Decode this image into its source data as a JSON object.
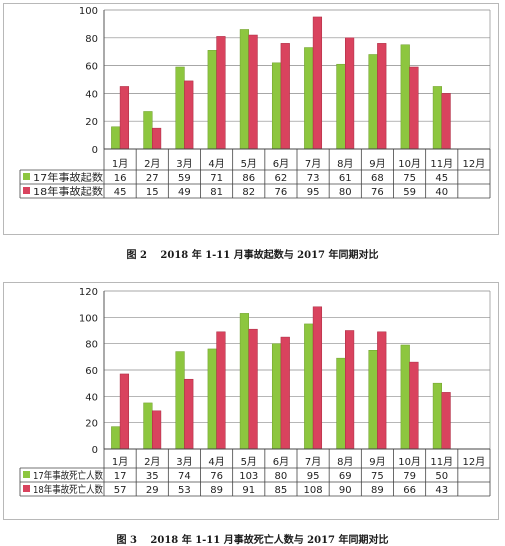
{
  "chart_data": [
    {
      "type": "bar",
      "categories": [
        "1月",
        "2月",
        "3月",
        "4月",
        "5月",
        "6月",
        "7月",
        "8月",
        "9月",
        "10月",
        "11月",
        "12月"
      ],
      "series": [
        {
          "name": "17年事故起数",
          "color": "#8dc63f",
          "values": [
            16,
            27,
            59,
            71,
            86,
            62,
            73,
            61,
            68,
            75,
            45,
            null
          ]
        },
        {
          "name": "18年事故起数",
          "color": "#d9435e",
          "values": [
            45,
            15,
            49,
            81,
            82,
            76,
            95,
            80,
            76,
            59,
            40,
            null
          ]
        }
      ],
      "ylim": [
        0,
        100
      ],
      "yticks": [
        0,
        20,
        40,
        60,
        80,
        100
      ],
      "grid": true,
      "legend": "data-table",
      "caption": "图 2　 2018 年 1-11 月事故起数与 2017 年同期对比"
    },
    {
      "type": "bar",
      "categories": [
        "1月",
        "2月",
        "3月",
        "4月",
        "5月",
        "6月",
        "7月",
        "8月",
        "9月",
        "10月",
        "11月",
        "12月"
      ],
      "series": [
        {
          "name": "17年事故死亡人数",
          "color": "#8dc63f",
          "values": [
            17,
            35,
            74,
            76,
            103,
            80,
            95,
            69,
            75,
            79,
            50,
            null
          ]
        },
        {
          "name": "18年事故死亡人数",
          "color": "#d9435e",
          "values": [
            57,
            29,
            53,
            89,
            91,
            85,
            108,
            90,
            89,
            66,
            43,
            null
          ]
        }
      ],
      "ylim": [
        0,
        120
      ],
      "yticks": [
        0,
        20,
        40,
        60,
        80,
        100,
        120
      ],
      "grid": true,
      "legend": "data-table",
      "caption": "图 3　 2018 年 1-11 月事故死亡人数与 2017 年同期对比"
    }
  ]
}
